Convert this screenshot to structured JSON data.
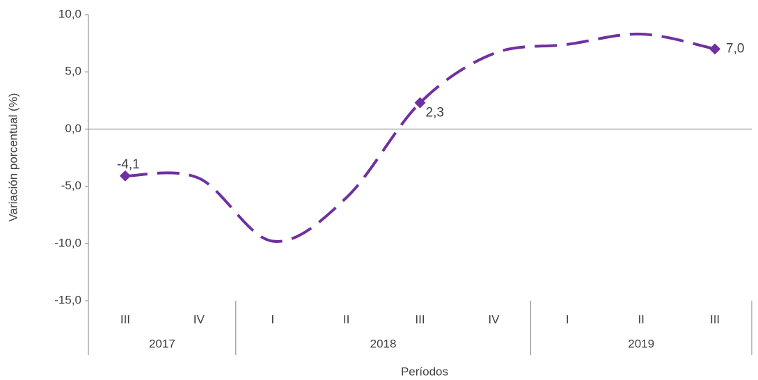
{
  "chart_data": {
    "type": "line",
    "y_label": "Variación porcentual (%)",
    "x_label": "Períodos",
    "groups": [
      {
        "label": "2017",
        "categories": [
          "III",
          "IV"
        ]
      },
      {
        "label": "2018",
        "categories": [
          "I",
          "II",
          "III",
          "IV"
        ]
      },
      {
        "label": "2019",
        "categories": [
          "I",
          "II",
          "III"
        ]
      }
    ],
    "series": [
      {
        "name": "Variación",
        "color": "#7030a0",
        "values": [
          -4.1,
          -4.3,
          -9.8,
          -6.0,
          2.3,
          6.6,
          7.4,
          8.3,
          7.0
        ],
        "value_labels": [
          "-4,1",
          null,
          null,
          null,
          "2,3",
          null,
          null,
          null,
          "7,0"
        ]
      }
    ],
    "ylim": [
      -15,
      10
    ],
    "yticks": [
      {
        "value": -15,
        "label": "-15,0"
      },
      {
        "value": -10,
        "label": "-10,0"
      },
      {
        "value": -5,
        "label": "-5,0"
      },
      {
        "value": 0,
        "label": "0,0"
      },
      {
        "value": 5,
        "label": "5,0"
      },
      {
        "value": 10,
        "label": "10,0"
      }
    ]
  }
}
